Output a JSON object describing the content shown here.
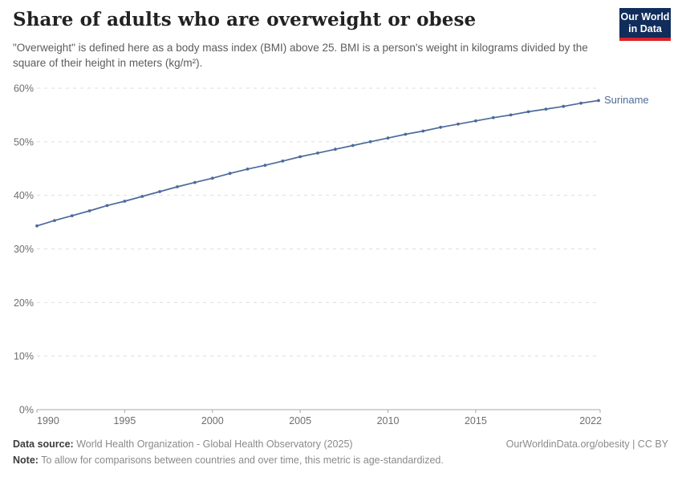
{
  "header": {
    "title": "Share of adults who are overweight or obese",
    "subtitle": "\"Overweight\" is defined here as a body mass index (BMI) above 25. BMI is a person's weight in kilograms divided by the square of their height in meters (kg/m²)."
  },
  "logo": {
    "line1": "Our World",
    "line2": "in Data",
    "bg_color": "#102d5b",
    "accent_color": "#d8232a"
  },
  "chart_data": {
    "type": "line",
    "title": "Share of adults who are overweight or obese",
    "xlabel": "",
    "ylabel": "",
    "xlim": [
      1990,
      2022
    ],
    "ylim": [
      0,
      60
    ],
    "grid": "horizontal-dashed",
    "legend_position": "end-of-line-label",
    "x_ticks": [
      "1990",
      "1995",
      "2000",
      "2005",
      "2010",
      "2015",
      "2022"
    ],
    "x_tick_years": [
      1990,
      1995,
      2000,
      2005,
      2010,
      2015,
      2022
    ],
    "y_ticks": [
      "0%",
      "10%",
      "20%",
      "30%",
      "40%",
      "50%",
      "60%"
    ],
    "y_tick_values": [
      0,
      10,
      20,
      30,
      40,
      50,
      60
    ],
    "series": [
      {
        "name": "Suriname",
        "color": "#4c6a9c",
        "x": [
          1990,
          1991,
          1992,
          1993,
          1994,
          1995,
          1996,
          1997,
          1998,
          1999,
          2000,
          2001,
          2002,
          2003,
          2004,
          2005,
          2006,
          2007,
          2008,
          2009,
          2010,
          2011,
          2012,
          2013,
          2014,
          2015,
          2016,
          2017,
          2018,
          2019,
          2020,
          2021,
          2022
        ],
        "values": [
          34.3,
          35.3,
          36.2,
          37.1,
          38.1,
          38.9,
          39.8,
          40.7,
          41.6,
          42.4,
          43.2,
          44.1,
          44.9,
          45.6,
          46.4,
          47.2,
          47.9,
          48.6,
          49.3,
          50.0,
          50.7,
          51.4,
          52.0,
          52.7,
          53.3,
          53.9,
          54.5,
          55.0,
          55.6,
          56.1,
          56.6,
          57.2,
          57.7
        ]
      }
    ]
  },
  "footer": {
    "datasource_label": "Data source:",
    "datasource_text": " World Health Organization - Global Health Observatory (2025)",
    "credit": "OurWorldinData.org/obesity | CC BY",
    "note_label": "Note:",
    "note_text": " To allow for comparisons between countries and over time, this metric is age-standardized."
  }
}
